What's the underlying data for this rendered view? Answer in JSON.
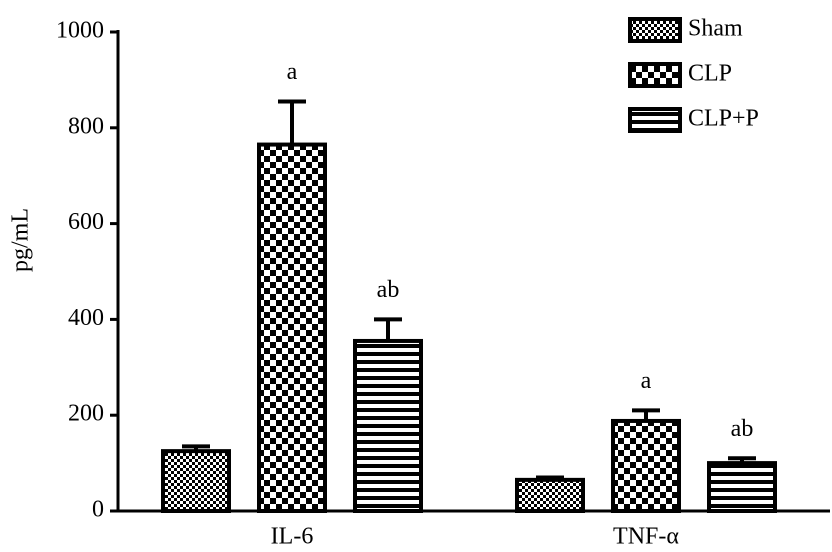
{
  "chart_data": {
    "type": "bar",
    "y_label": "pg/mL",
    "categories": [
      "IL-6",
      "TNF-α"
    ],
    "series": [
      {
        "name": "Sham",
        "color": "#000000",
        "values": [
          125,
          65
        ],
        "errors": [
          10,
          5
        ],
        "annotations": [
          null,
          null
        ]
      },
      {
        "name": "CLP",
        "color": "#000000",
        "values": [
          765,
          188
        ],
        "errors": [
          90,
          22
        ],
        "annotations": [
          "a",
          "a"
        ]
      },
      {
        "name": "CLP+P",
        "color": "#000000",
        "values": [
          355,
          100
        ],
        "errors": [
          45,
          10
        ],
        "annotations": [
          "ab",
          "ab"
        ]
      }
    ],
    "ylim": [
      0,
      1000
    ],
    "yticks": [
      0,
      200,
      400,
      600,
      800,
      1000
    ],
    "legend": "upper right",
    "grid": false
  }
}
